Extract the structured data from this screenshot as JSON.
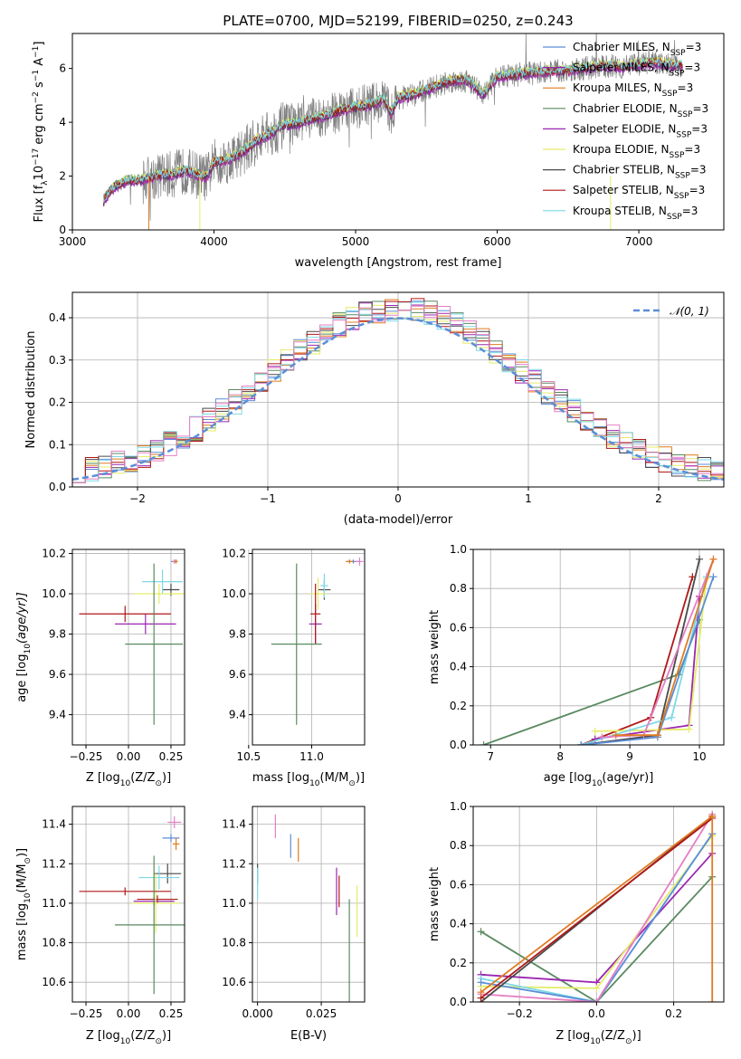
{
  "figure_title": "PLATE=0700, MJD=52199, FIBERID=0250, z=0.243",
  "colors": {
    "Chabrier MILES": "#5b8ed8",
    "Salpeter MILES": "#9b27b0",
    "Kroupa MILES": "#e07b20",
    "Chabrier ELODIE": "#5a8a60",
    "Salpeter ELODIE": "#9b27b0",
    "Kroupa ELODIE": "#e5ec6a",
    "Chabrier STELIB": "#4a4a4a",
    "Salpeter STELIB": "#b01818",
    "Kroupa STELIB": "#7dd8e6",
    "pink": "#e57fc4",
    "data": "#808080",
    "normal_curve": "#5b8ed8"
  },
  "chart_data": [
    {
      "id": "spectrum",
      "type": "line",
      "title": "PLATE=0700, MJD=52199, FIBERID=0250, z=0.243",
      "xlabel": "wavelength [Angstrom, rest frame]",
      "ylabel_parts": [
        "Flux [f",
        "λ",
        "10",
        "−17",
        " erg cm",
        "−2",
        " s",
        "−1",
        " A",
        "−1",
        "]"
      ],
      "xlim": [
        3000,
        7600
      ],
      "ylim": [
        0,
        7.3
      ],
      "xticks": [
        3000,
        4000,
        5000,
        6000,
        7000
      ],
      "yticks": [
        0,
        2,
        4,
        6
      ],
      "legend_position": "upper-right",
      "legend": [
        {
          "text": "Chabrier MILES, N",
          "sub": "SSP",
          "tail": "=3",
          "color": "#5b8ed8"
        },
        {
          "text": "Salpeter MILES, N",
          "sub": "SSP",
          "tail": "=3",
          "color": "#9b27b0"
        },
        {
          "text": "Kroupa MILES, N",
          "sub": "SSP",
          "tail": "=3",
          "color": "#e07b20"
        },
        {
          "text": "Chabrier ELODIE, N",
          "sub": "SSP",
          "tail": "=3",
          "color": "#5a8a60"
        },
        {
          "text": "Salpeter ELODIE, N",
          "sub": "SSP",
          "tail": "=3",
          "color": "#9b27b0"
        },
        {
          "text": "Kroupa ELODIE, N",
          "sub": "SSP",
          "tail": "=3",
          "color": "#e5ec6a"
        },
        {
          "text": "Chabrier STELIB, N",
          "sub": "SSP",
          "tail": "=3",
          "color": "#4a4a4a"
        },
        {
          "text": "Salpeter STELIB, N",
          "sub": "SSP",
          "tail": "=3",
          "color": "#b01818"
        },
        {
          "text": "Kroupa STELIB, N",
          "sub": "SSP",
          "tail": "=3",
          "color": "#7dd8e6"
        }
      ],
      "model_x": [
        3220,
        3300,
        3400,
        3500,
        3600,
        3700,
        3800,
        3900,
        3950,
        4000,
        4100,
        4200,
        4300,
        4400,
        4500,
        4600,
        4700,
        4800,
        4900,
        5000,
        5100,
        5200,
        5250,
        5300,
        5400,
        5500,
        5600,
        5700,
        5800,
        5900,
        6000,
        6100,
        6200,
        6300,
        6400,
        6500,
        6600,
        6700,
        6800,
        6900,
        7000,
        7100,
        7200,
        7300
      ],
      "model_y": [
        1.1,
        1.6,
        1.85,
        1.85,
        2.0,
        2.05,
        2.2,
        2.0,
        1.95,
        2.5,
        2.6,
        2.9,
        3.3,
        3.6,
        3.9,
        3.95,
        4.15,
        4.25,
        4.45,
        4.55,
        4.65,
        4.85,
        4.3,
        4.9,
        5.0,
        5.2,
        5.4,
        5.55,
        5.55,
        5.0,
        5.7,
        5.75,
        5.8,
        5.85,
        5.9,
        5.9,
        6.0,
        6.05,
        6.1,
        6.05,
        6.15,
        6.2,
        6.15,
        6.1
      ]
    },
    {
      "id": "residuals",
      "type": "histogram",
      "xlabel": "(data-model)/error",
      "ylabel": "Normed distribution",
      "xlim": [
        -2.5,
        2.5
      ],
      "ylim": [
        0,
        0.46
      ],
      "xticks": [
        -2,
        -1,
        0,
        1,
        2
      ],
      "yticks": [
        0,
        0.1,
        0.2,
        0.3,
        0.4
      ],
      "grid": true,
      "legend_position": "upper-right",
      "legend": [
        {
          "text": "𝒩(0, 1)",
          "color": "#5b8ed8",
          "style": "dashed"
        }
      ]
    },
    {
      "id": "age_vs_Z",
      "type": "errorbar",
      "xlabel_parts": [
        "Z [log",
        "10",
        "(Z/Z",
        "⊙",
        ")]"
      ],
      "ylabel_parts": [
        "age  [log",
        "10",
        "(age/yr)]"
      ],
      "xlim": [
        -0.33,
        0.33
      ],
      "ylim": [
        9.25,
        10.22
      ],
      "xticks": [
        -0.25,
        0.0,
        0.25
      ],
      "yticks": [
        9.4,
        9.6,
        9.8,
        10.0,
        10.2
      ],
      "grid": true,
      "points": [
        {
          "x": 0.27,
          "xerr": 0.02,
          "y": 10.16,
          "yerr": 0.01,
          "color": "#5b8ed8"
        },
        {
          "x": 0.27,
          "xerr": 0.01,
          "y": 10.16,
          "yerr": 0.01,
          "color": "#e57fc4"
        },
        {
          "x": 0.28,
          "xerr": 0.01,
          "y": 10.16,
          "yerr": 0.01,
          "color": "#e07b20"
        },
        {
          "x": 0.25,
          "xerr": 0.05,
          "y": 10.02,
          "yerr": 0.03,
          "color": "#4a4a4a"
        },
        {
          "x": 0.2,
          "xerr": 0.12,
          "y": 10.06,
          "yerr": 0.06,
          "color": "#7dd8e6"
        },
        {
          "x": 0.18,
          "xerr": 0.15,
          "y": 10.0,
          "yerr": 0.05,
          "color": "#e5ec6a"
        },
        {
          "x": 0.1,
          "xerr": 0.18,
          "y": 9.85,
          "yerr": 0.05,
          "color": "#9b27b0"
        },
        {
          "x": -0.02,
          "xerr": 0.27,
          "y": 9.9,
          "yerr": 0.04,
          "color": "#b01818"
        },
        {
          "x": 0.15,
          "xerr": 0.17,
          "y": 9.75,
          "yerr": 0.4,
          "color": "#5a8a60"
        }
      ]
    },
    {
      "id": "age_vs_mass",
      "type": "errorbar",
      "xlabel_parts": [
        "mass [log",
        "10",
        "(M/M",
        "⊙",
        ")]"
      ],
      "xlim": [
        10.53,
        11.42
      ],
      "ylim": [
        9.25,
        10.22
      ],
      "xticks": [
        10.5,
        11.0
      ],
      "yticks": [
        9.4,
        9.6,
        9.8,
        10.0,
        10.2
      ],
      "grid": true,
      "points": [
        {
          "x": 11.33,
          "xerr": 0.05,
          "y": 10.16,
          "yerr": 0.01,
          "color": "#5b8ed8"
        },
        {
          "x": 11.38,
          "xerr": 0.03,
          "y": 10.16,
          "yerr": 0.02,
          "color": "#e57fc4"
        },
        {
          "x": 11.3,
          "xerr": 0.03,
          "y": 10.16,
          "yerr": 0.01,
          "color": "#e07b20"
        },
        {
          "x": 11.1,
          "xerr": 0.05,
          "y": 10.02,
          "yerr": 0.05,
          "color": "#4a4a4a"
        },
        {
          "x": 11.1,
          "xerr": 0.03,
          "y": 10.04,
          "yerr": 0.06,
          "color": "#7dd8e6"
        },
        {
          "x": 11.05,
          "xerr": 0.06,
          "y": 10.0,
          "yerr": 0.08,
          "color": "#e5ec6a"
        },
        {
          "x": 11.03,
          "xerr": 0.05,
          "y": 9.85,
          "yerr": 0.1,
          "color": "#9b27b0"
        },
        {
          "x": 11.03,
          "xerr": 0.04,
          "y": 9.9,
          "yerr": 0.15,
          "color": "#b01818"
        },
        {
          "x": 10.88,
          "xerr": 0.2,
          "y": 9.75,
          "yerr": 0.4,
          "color": "#5a8a60"
        }
      ]
    },
    {
      "id": "weight_vs_age",
      "type": "line",
      "xlabel_parts": [
        "age  [log",
        "10",
        "(age/yr)]"
      ],
      "ylabel": "mass weight",
      "xlim": [
        6.75,
        10.35
      ],
      "ylim": [
        0,
        1.0
      ],
      "xticks": [
        7,
        8,
        9,
        10
      ],
      "yticks": [
        0.0,
        0.2,
        0.4,
        0.6,
        0.8,
        1.0
      ],
      "grid": true,
      "series": [
        {
          "color": "#5a8a60",
          "x": [
            6.9,
            9.7,
            10.0
          ],
          "y": [
            0.0,
            0.36,
            0.64
          ]
        },
        {
          "color": "#b01818",
          "x": [
            8.3,
            9.3,
            9.9
          ],
          "y": [
            0.0,
            0.14,
            0.86
          ]
        },
        {
          "color": "#4a4a4a",
          "x": [
            8.3,
            9.4,
            10.0
          ],
          "y": [
            0.0,
            0.05,
            0.95
          ]
        },
        {
          "color": "#9b27b0",
          "x": [
            8.5,
            9.85,
            10.0
          ],
          "y": [
            0.03,
            0.1,
            0.76
          ]
        },
        {
          "color": "#e5ec6a",
          "x": [
            8.5,
            9.85,
            10.1
          ],
          "y": [
            0.07,
            0.08,
            0.85
          ]
        },
        {
          "color": "#7dd8e6",
          "x": [
            8.3,
            9.6,
            10.1
          ],
          "y": [
            0.0,
            0.14,
            0.86
          ]
        },
        {
          "color": "#5b8ed8",
          "x": [
            8.3,
            9.4,
            10.2
          ],
          "y": [
            0.0,
            0.04,
            0.86
          ]
        },
        {
          "color": "#e57fc4",
          "x": [
            8.6,
            9.2,
            10.2
          ],
          "y": [
            0.04,
            0.05,
            0.95
          ]
        },
        {
          "color": "#e07b20",
          "x": [
            8.8,
            9.4,
            10.2
          ],
          "y": [
            0.05,
            0.05,
            0.95
          ]
        }
      ]
    },
    {
      "id": "mass_vs_Z",
      "type": "errorbar",
      "xlabel_parts": [
        "Z [log",
        "10",
        "(Z/Z",
        "⊙",
        ")]"
      ],
      "ylabel_parts": [
        "mass [log",
        "10",
        "(M/M",
        "⊙",
        ")]"
      ],
      "xlim": [
        -0.33,
        0.33
      ],
      "ylim": [
        10.5,
        11.49
      ],
      "xticks": [
        -0.25,
        0.0,
        0.25
      ],
      "yticks": [
        10.6,
        10.8,
        11.0,
        11.2,
        11.4
      ],
      "grid": true,
      "points": [
        {
          "x": 0.27,
          "xerr": 0.04,
          "y": 11.41,
          "yerr": 0.03,
          "color": "#e57fc4"
        },
        {
          "x": 0.25,
          "xerr": 0.05,
          "y": 11.33,
          "yerr": 0.02,
          "color": "#5b8ed8"
        },
        {
          "x": 0.28,
          "xerr": 0.02,
          "y": 11.3,
          "yerr": 0.03,
          "color": "#e07b20"
        },
        {
          "x": 0.23,
          "xerr": 0.08,
          "y": 11.15,
          "yerr": 0.05,
          "color": "#4a4a4a"
        },
        {
          "x": 0.18,
          "xerr": 0.12,
          "y": 11.13,
          "yerr": 0.06,
          "color": "#7dd8e6"
        },
        {
          "x": 0.17,
          "xerr": 0.12,
          "y": 11.02,
          "yerr": 0.02,
          "color": "#b01818"
        },
        {
          "x": 0.15,
          "xerr": 0.12,
          "y": 11.01,
          "yerr": 0.02,
          "color": "#9b27b0"
        },
        {
          "x": 0.16,
          "xerr": 0.14,
          "y": 11.0,
          "yerr": 0.15,
          "color": "#e5ec6a"
        },
        {
          "x": -0.02,
          "xerr": 0.27,
          "y": 11.06,
          "yerr": 0.02,
          "color": "#b01818"
        },
        {
          "x": 0.15,
          "xerr": 0.23,
          "y": 10.89,
          "yerr": 0.35,
          "color": "#5a8a60"
        }
      ]
    },
    {
      "id": "mass_vs_EBV",
      "type": "errorbar",
      "xlabel": "E(B-V)",
      "xlim": [
        -0.002,
        0.042
      ],
      "ylim": [
        10.5,
        11.49
      ],
      "xticks": [
        0.0,
        0.025
      ],
      "yticks": [
        10.6,
        10.8,
        11.0,
        11.2,
        11.4
      ],
      "grid": true,
      "points": [
        {
          "x": 0.007,
          "xerr": 0,
          "y": 11.39,
          "yerr": 0.06,
          "color": "#e57fc4"
        },
        {
          "x": 0.013,
          "xerr": 0,
          "y": 11.29,
          "yerr": 0.06,
          "color": "#5b8ed8"
        },
        {
          "x": 0.016,
          "xerr": 0,
          "y": 11.27,
          "yerr": 0.06,
          "color": "#e07b20"
        },
        {
          "x": 0.0,
          "xerr": 0,
          "y": 11.15,
          "yerr": 0.05,
          "color": "#4a4a4a"
        },
        {
          "x": 0.0,
          "xerr": 0,
          "y": 11.1,
          "yerr": 0.08,
          "color": "#7dd8e6"
        },
        {
          "x": 0.031,
          "xerr": 0,
          "y": 11.06,
          "yerr": 0.12,
          "color": "#9b27b0"
        },
        {
          "x": 0.032,
          "xerr": 0,
          "y": 11.06,
          "yerr": 0.08,
          "color": "#b01818"
        },
        {
          "x": 0.039,
          "xerr": 0,
          "y": 10.96,
          "yerr": 0.13,
          "color": "#e5ec6a"
        },
        {
          "x": 0.036,
          "xerr": 0,
          "y": 10.74,
          "yerr": 0.28,
          "color": "#5a8a60"
        }
      ]
    },
    {
      "id": "weight_vs_Z",
      "type": "line",
      "xlabel_parts": [
        "Z [log",
        "10",
        "(Z/Z",
        "⊙",
        ")]"
      ],
      "ylabel": "mass weight",
      "xlim": [
        -0.32,
        0.33
      ],
      "ylim": [
        0,
        1.0
      ],
      "xticks": [
        -0.2,
        0.0,
        0.2
      ],
      "yticks": [
        0.0,
        0.2,
        0.4,
        0.6,
        0.8,
        1.0
      ],
      "grid": true,
      "series": [
        {
          "color": "#5a8a60",
          "x": [
            -0.3,
            0.0,
            0.3
          ],
          "y": [
            0.36,
            0.0,
            0.64
          ]
        },
        {
          "color": "#9b27b0",
          "x": [
            -0.3,
            0.0,
            0.3
          ],
          "y": [
            0.14,
            0.1,
            0.76
          ]
        },
        {
          "color": "#e5ec6a",
          "x": [
            -0.3,
            0.0,
            0.3
          ],
          "y": [
            0.08,
            0.07,
            0.85
          ]
        },
        {
          "color": "#7dd8e6",
          "x": [
            -0.3,
            0.0,
            0.3
          ],
          "y": [
            0.12,
            0.0,
            0.86
          ]
        },
        {
          "color": "#5b8ed8",
          "x": [
            -0.3,
            0.0,
            0.3
          ],
          "y": [
            0.1,
            0.0,
            0.86
          ]
        },
        {
          "color": "#e57fc4",
          "x": [
            -0.3,
            0.0,
            0.3
          ],
          "y": [
            0.04,
            0.0,
            0.96
          ]
        },
        {
          "color": "#4a4a4a",
          "x": [
            -0.3,
            0.3
          ],
          "y": [
            0.0,
            0.95
          ]
        },
        {
          "color": "#b01818",
          "x": [
            -0.3,
            0.3
          ],
          "y": [
            0.02,
            0.94
          ]
        },
        {
          "color": "#e07b20",
          "x": [
            -0.3,
            0.3,
            0.3
          ],
          "y": [
            0.05,
            0.95,
            0.0
          ]
        }
      ]
    }
  ]
}
